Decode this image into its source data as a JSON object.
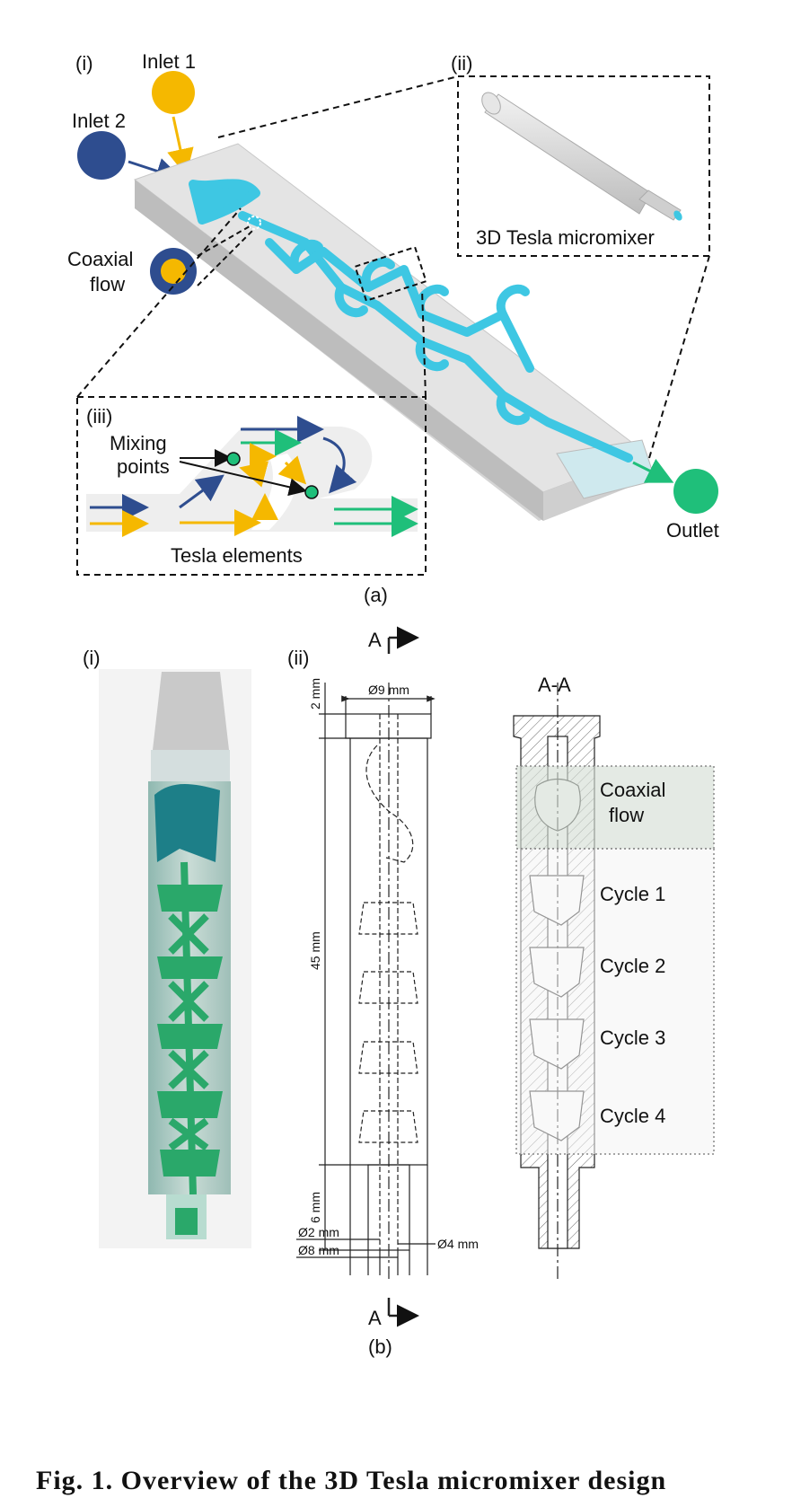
{
  "panel_a": {
    "label": "(a)",
    "sub_i": "(i)",
    "sub_ii": "(ii)",
    "sub_iii": "(iii)",
    "inlet1": "Inlet 1",
    "inlet2": "Inlet 2",
    "coaxial_line1": "Coaxial",
    "coaxial_line2": "flow",
    "micromixer_title": "3D Tesla micromixer",
    "outlet": "Outlet",
    "mixing_line1": "Mixing",
    "mixing_line2": "points",
    "tesla_elements": "Tesla elements",
    "colors": {
      "inlet1": "#f5b800",
      "inlet2": "#2e4d8f",
      "outlet": "#1fbf7a",
      "channel": "#3ec7e3",
      "body": "#d9d9d9"
    }
  },
  "panel_b": {
    "label": "(b)",
    "sub_i": "(i)",
    "sub_ii": "(ii)",
    "section_top": "A",
    "section_bottom": "A",
    "section_view": "A-A",
    "dim_9": "Ø9 mm",
    "dim_2top": "2 mm",
    "dim_45": "45 mm",
    "dim_6": "6 mm",
    "dim_2": "Ø2 mm",
    "dim_8": "Ø8 mm",
    "dim_4": "Ø4 mm",
    "coaxial_line1": "Coaxial",
    "coaxial_line2": "flow",
    "cycles": [
      "Cycle 1",
      "Cycle 2",
      "Cycle 3",
      "Cycle 4"
    ]
  },
  "caption": "Fig. 1. Overview of the 3D Tesla micromixer design"
}
